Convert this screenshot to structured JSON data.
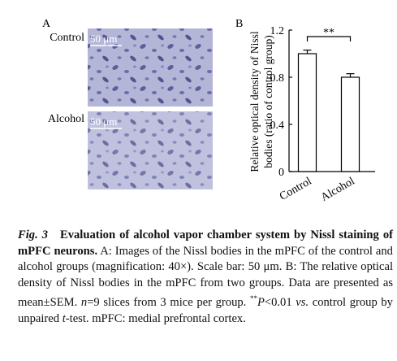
{
  "panel_a": {
    "label": "A",
    "rows": [
      {
        "label": "Control",
        "scale_bar": "50 μm"
      },
      {
        "label": "Alcohol",
        "scale_bar": "50 μm"
      }
    ]
  },
  "chart_data": {
    "type": "bar",
    "panel_label": "B",
    "y_label": [
      "Relative optical density of Nissl",
      "bodies (ratio of control group)"
    ],
    "categories": [
      "Control",
      "Alcohol"
    ],
    "values": [
      1.0,
      0.8
    ],
    "errors": [
      0.03,
      0.03
    ],
    "color": "#ffffff",
    "ylim": [
      0,
      1.2
    ],
    "yticks": [
      0,
      0.4,
      0.8,
      1.2
    ],
    "significance": "**"
  },
  "caption": {
    "parts": [
      "Fig. 3",
      "Evaluation of alcohol vapor chamber system by Nissl staining of mPFC neurons.",
      " A: Images of the Nissl bodies in the mPFC of the control and alcohol groups (magnification: 40×). Scale bar: 50 μm. B: The relative optical density of Nissl bodies in the mPFC from two groups. Data are presented as mean±SEM. ",
      "n",
      "=9 slices from 3 mice per group. ",
      "**",
      "P",
      "<0.01 ",
      "vs.",
      " control group by unpaired ",
      "t",
      "-test. mPFC: medial prefrontal cortex."
    ]
  }
}
